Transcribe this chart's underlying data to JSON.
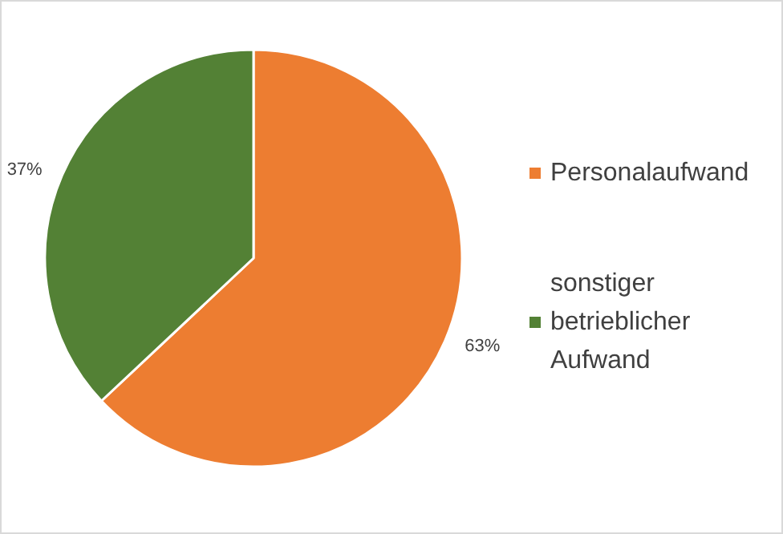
{
  "chart_data": {
    "type": "pie",
    "categories": [
      "Personalaufwand",
      "sonstiger betrieblicher Aufwand"
    ],
    "values": [
      63,
      37
    ],
    "colors": [
      "#ed7d31",
      "#538135"
    ],
    "legend": "right",
    "value_labels": [
      "63%",
      "37%"
    ]
  }
}
